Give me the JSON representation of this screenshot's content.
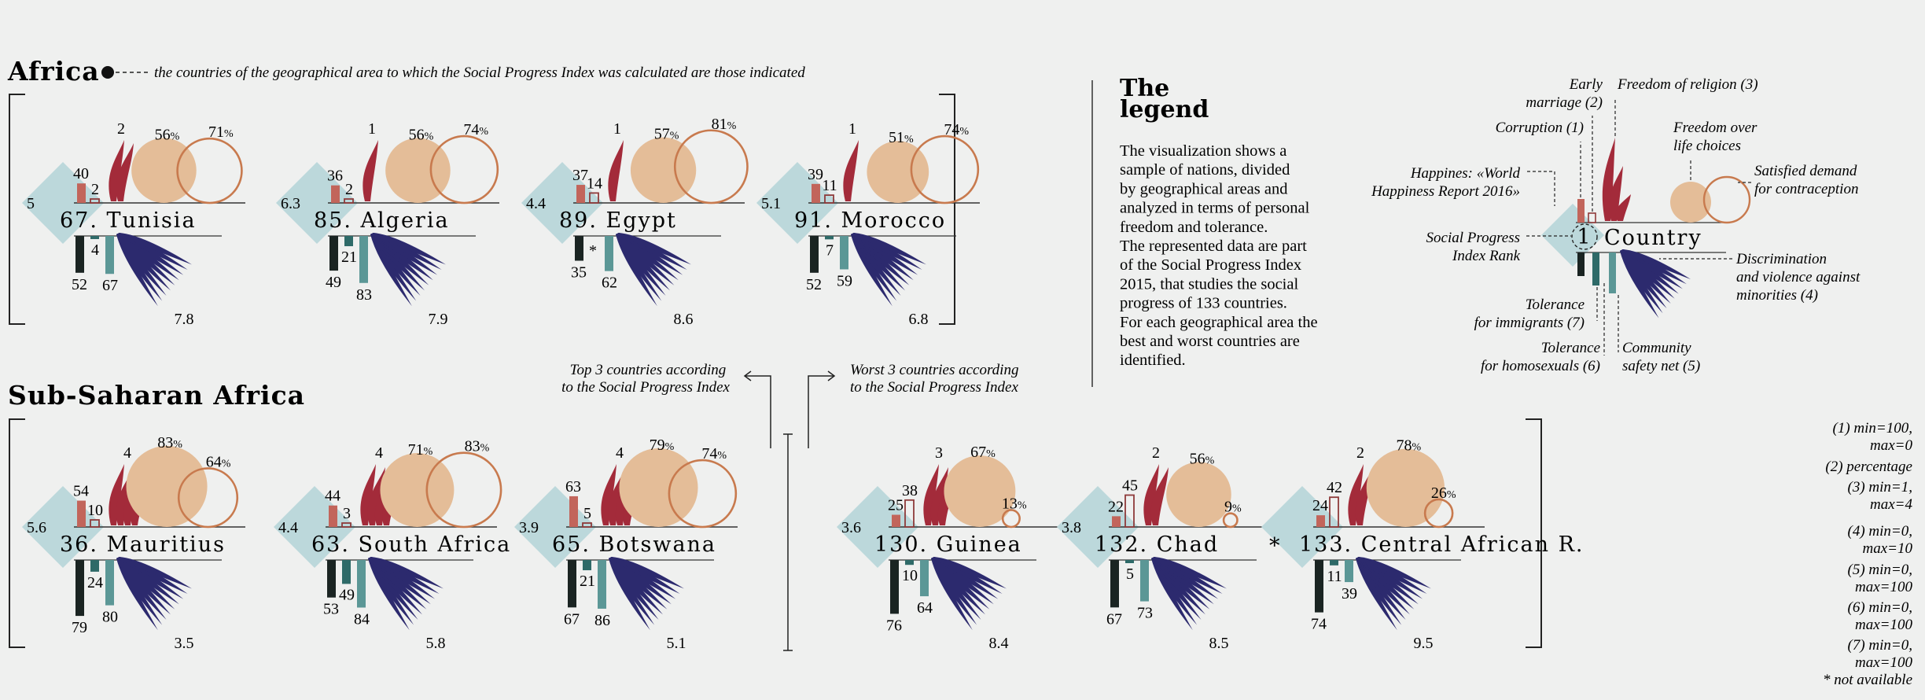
{
  "sections": {
    "africa": {
      "title": "Africa",
      "note": "the countries of the geographical area to which the Social Progress Index was calculated are those indicated"
    },
    "subsaharan": {
      "title": "Sub-Saharan Africa",
      "top_label": [
        "Top 3 countries according",
        "to the Social Progress Index"
      ],
      "worst_label": [
        "Worst 3 countries according",
        "to the Social Progress Index"
      ]
    }
  },
  "legend": {
    "title_line1": "The",
    "title_line2": "legend",
    "paragraph": [
      "The visualization shows a",
      "sample of nations, divided",
      "by geographical areas and",
      "analyzed in terms of personal",
      "freedom and tolerance.",
      "The represented data are part",
      "of the Social Progress Index",
      "2015, that studies the social",
      "progress of 133 countries.",
      "For each geographical area the",
      "best and worst countries are",
      "identified."
    ],
    "example_country": "Country",
    "example_rank": "1",
    "labels": {
      "early_marriage": [
        "Early",
        "marriage (2)"
      ],
      "freedom_religion": [
        "Freedom of religion (3)"
      ],
      "corruption": [
        "Corruption (1)"
      ],
      "freedom_life": [
        "Freedom over",
        "life choices"
      ],
      "happiness": [
        "Happines: «World",
        "Happiness Report 2016»"
      ],
      "satisfied": [
        "Satisfied demand",
        "for contraception"
      ],
      "spi_rank": [
        "Social Progress",
        "Index Rank"
      ],
      "discrimination": [
        "Discrimination",
        "and violence against",
        "minorities (4)"
      ],
      "tolerance_imm": [
        "Tolerance",
        "for immigrants (7)"
      ],
      "tolerance_homo": [
        "Tolerance",
        "for homosexuals (6)"
      ],
      "community": [
        "Community",
        "safety net (5)"
      ]
    },
    "scale_notes": [
      [
        "(1) min=100,",
        "max=0"
      ],
      [
        "(2) percentage"
      ],
      [
        "(3) min=1,",
        "max=4"
      ],
      [
        "(4) min=0,",
        "max=10"
      ],
      [
        "(5) min=0,",
        "max=100"
      ],
      [
        "(6) min=0,",
        "max=100"
      ],
      [
        "(7) min=0,",
        "max=100"
      ]
    ],
    "not_available": "* not available"
  },
  "colors": {
    "diamond": "#bcd8db",
    "corruption_bar": "#c2655b",
    "early_marriage": "#8e3a3a",
    "flame": "#a32b3a",
    "circle_fill": "#e4bd98",
    "circle_ring": "#c87a4e",
    "imm_bar": "#1a2422",
    "homo_bar": "#2e6a68",
    "community_bar": "#5b9796",
    "wing": "#2c2a6e",
    "text": "#1c1c1c"
  },
  "chart_data": {
    "type": "table",
    "fields": [
      "rank",
      "country",
      "happiness",
      "corruption",
      "early_marriage_pct",
      "freedom_of_religion",
      "freedom_life_choices_pct",
      "satisfied_contraception_pct",
      "discrimination",
      "community_safety_net",
      "tolerance_homosexuals",
      "tolerance_immigrants"
    ],
    "groups": [
      {
        "name": "Africa",
        "countries": [
          {
            "rank": 67,
            "name": "Tunisia",
            "happiness": "5",
            "corruption": 40,
            "early_marriage": 2,
            "religion": 2,
            "freedom": 56,
            "contraception": 71,
            "discrimination": "7.8",
            "immigrants": 52,
            "homosexuals": 4,
            "community": 67
          },
          {
            "rank": 85,
            "name": "Algeria",
            "happiness": "6.3",
            "corruption": 36,
            "early_marriage": 2,
            "religion": 1,
            "freedom": 56,
            "contraception": 74,
            "discrimination": "7.9",
            "immigrants": 49,
            "homosexuals": 21,
            "community": 83
          },
          {
            "rank": 89,
            "name": "Egypt",
            "happiness": "4.4",
            "corruption": 37,
            "early_marriage": 14,
            "religion": 1,
            "freedom": 57,
            "contraception": 81,
            "discrimination": "8.6",
            "immigrants": 35,
            "homosexuals": "*",
            "community": 62
          },
          {
            "rank": 91,
            "name": "Morocco",
            "happiness": "5.1",
            "corruption": 39,
            "early_marriage": 11,
            "religion": 1,
            "freedom": 51,
            "contraception": 74,
            "discrimination": "6.8",
            "immigrants": 52,
            "homosexuals": 7,
            "community": 59
          }
        ]
      },
      {
        "name": "Sub-Saharan Africa",
        "countries": [
          {
            "rank": 36,
            "name": "Mauritius",
            "happiness": "5.6",
            "corruption": 54,
            "early_marriage": 10,
            "religion": 4,
            "freedom": 83,
            "contraception": 64,
            "discrimination": "3.5",
            "immigrants": 79,
            "homosexuals": 24,
            "community": 80
          },
          {
            "rank": 63,
            "name": "South Africa",
            "happiness": "4.4",
            "corruption": 44,
            "early_marriage": 3,
            "religion": 4,
            "freedom": 71,
            "contraception": 83,
            "discrimination": "5.8",
            "immigrants": 53,
            "homosexuals": 49,
            "community": 84
          },
          {
            "rank": 65,
            "name": "Botswana",
            "happiness": "3.9",
            "corruption": 63,
            "early_marriage": 5,
            "religion": 4,
            "freedom": 79,
            "contraception": 74,
            "discrimination": "5.1",
            "immigrants": 67,
            "homosexuals": 21,
            "community": 86
          },
          {
            "rank": 130,
            "name": "Guinea",
            "happiness": "3.6",
            "corruption": 25,
            "early_marriage": 38,
            "religion": 3,
            "freedom": 67,
            "contraception": 13,
            "discrimination": "8.4",
            "immigrants": 76,
            "homosexuals": 10,
            "community": 64
          },
          {
            "rank": 132,
            "name": "Chad",
            "happiness": "3.8",
            "corruption": 22,
            "early_marriage": 45,
            "religion": 2,
            "freedom": 56,
            "contraception": 9,
            "discrimination": "8.5",
            "immigrants": 67,
            "homosexuals": 5,
            "community": 73
          },
          {
            "rank": 133,
            "name": "Central African R.",
            "happiness": "*",
            "corruption": 24,
            "early_marriage": 42,
            "religion": 2,
            "freedom": 78,
            "contraception": 26,
            "discrimination": "9.5",
            "immigrants": 74,
            "homosexuals": 11,
            "community": 39
          }
        ]
      }
    ]
  }
}
